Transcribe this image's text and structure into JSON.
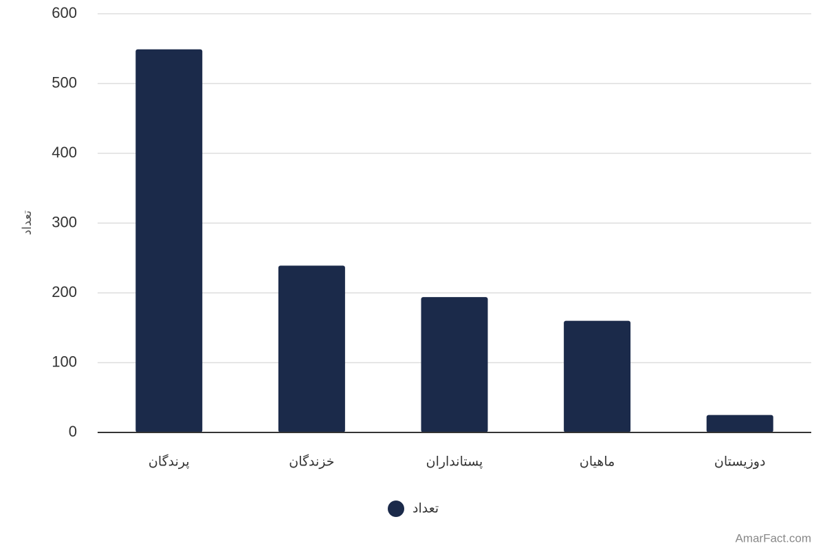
{
  "chart_data": {
    "type": "bar",
    "y_label": "تعداد",
    "categories": [
      "پرندگان",
      "خزندگان",
      "پستانداران",
      "ماهیان",
      "دوزیستان"
    ],
    "series": [
      {
        "name": "تعداد",
        "color": "#1b2a4a",
        "values": [
          549,
          239,
          194,
          160,
          25
        ]
      }
    ],
    "ylim": [
      0,
      600
    ],
    "yticks": [
      0,
      100,
      200,
      300,
      400,
      500,
      600
    ],
    "grid": true,
    "watermark": "AmarFact.com"
  }
}
